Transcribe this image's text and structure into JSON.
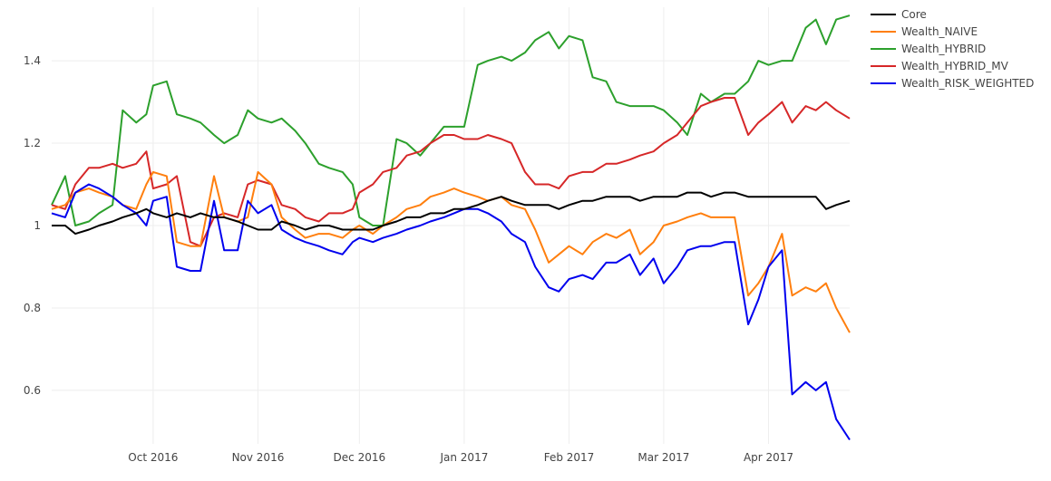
{
  "chart_data": {
    "type": "line",
    "title": "",
    "xlabel": "",
    "ylabel": "",
    "x_ticks": [
      "Oct 2016",
      "Nov 2016",
      "Dec 2016",
      "Jan 2017",
      "Feb 2017",
      "Mar 2017",
      "Apr 2017"
    ],
    "y_ticks": [
      "0.6",
      "0.8",
      "1",
      "1.2",
      "1.4"
    ],
    "xlim": [
      "2016-09-01",
      "2017-04-25"
    ],
    "ylim": [
      0.47,
      1.53
    ],
    "grid": true,
    "legend_position": "top-right",
    "series": [
      {
        "name": "Core",
        "color": "#000000",
        "x": [
          "2016-09-01",
          "2016-09-05",
          "2016-09-08",
          "2016-09-12",
          "2016-09-15",
          "2016-09-19",
          "2016-09-22",
          "2016-09-26",
          "2016-09-29",
          "2016-10-01",
          "2016-10-05",
          "2016-10-08",
          "2016-10-12",
          "2016-10-15",
          "2016-10-19",
          "2016-10-22",
          "2016-10-26",
          "2016-10-29",
          "2016-11-01",
          "2016-11-05",
          "2016-11-08",
          "2016-11-12",
          "2016-11-15",
          "2016-11-19",
          "2016-11-22",
          "2016-11-26",
          "2016-11-29",
          "2016-12-01",
          "2016-12-05",
          "2016-12-08",
          "2016-12-12",
          "2016-12-15",
          "2016-12-19",
          "2016-12-22",
          "2016-12-26",
          "2016-12-29",
          "2017-01-01",
          "2017-01-05",
          "2017-01-08",
          "2017-01-12",
          "2017-01-15",
          "2017-01-19",
          "2017-01-22",
          "2017-01-26",
          "2017-01-29",
          "2017-02-01",
          "2017-02-05",
          "2017-02-08",
          "2017-02-12",
          "2017-02-15",
          "2017-02-19",
          "2017-02-22",
          "2017-02-26",
          "2017-03-01",
          "2017-03-05",
          "2017-03-08",
          "2017-03-12",
          "2017-03-15",
          "2017-03-19",
          "2017-03-22",
          "2017-03-26",
          "2017-03-29",
          "2017-04-01",
          "2017-04-05",
          "2017-04-08",
          "2017-04-12",
          "2017-04-15",
          "2017-04-18",
          "2017-04-21",
          "2017-04-25"
        ],
        "values": [
          1.0,
          1.0,
          0.98,
          0.99,
          1.0,
          1.01,
          1.02,
          1.03,
          1.04,
          1.03,
          1.02,
          1.03,
          1.02,
          1.03,
          1.02,
          1.02,
          1.01,
          1.0,
          0.99,
          0.99,
          1.01,
          1.0,
          0.99,
          1.0,
          1.0,
          0.99,
          0.99,
          0.99,
          0.99,
          1.0,
          1.01,
          1.02,
          1.02,
          1.03,
          1.03,
          1.04,
          1.04,
          1.05,
          1.06,
          1.07,
          1.06,
          1.05,
          1.05,
          1.05,
          1.04,
          1.05,
          1.06,
          1.06,
          1.07,
          1.07,
          1.07,
          1.06,
          1.07,
          1.07,
          1.07,
          1.08,
          1.08,
          1.07,
          1.08,
          1.08,
          1.07,
          1.07,
          1.07,
          1.07,
          1.07,
          1.07,
          1.07,
          1.04,
          1.05,
          1.06
        ]
      },
      {
        "name": "Wealth_NAIVE",
        "color": "#ff7f0e",
        "x": [
          "2016-09-01",
          "2016-09-05",
          "2016-09-08",
          "2016-09-12",
          "2016-09-15",
          "2016-09-19",
          "2016-09-22",
          "2016-09-26",
          "2016-09-29",
          "2016-10-01",
          "2016-10-05",
          "2016-10-08",
          "2016-10-12",
          "2016-10-15",
          "2016-10-19",
          "2016-10-22",
          "2016-10-26",
          "2016-10-29",
          "2016-11-01",
          "2016-11-05",
          "2016-11-08",
          "2016-11-12",
          "2016-11-15",
          "2016-11-19",
          "2016-11-22",
          "2016-11-26",
          "2016-11-29",
          "2016-12-01",
          "2016-12-05",
          "2016-12-08",
          "2016-12-12",
          "2016-12-15",
          "2016-12-19",
          "2016-12-22",
          "2016-12-26",
          "2016-12-29",
          "2017-01-01",
          "2017-01-05",
          "2017-01-08",
          "2017-01-12",
          "2017-01-15",
          "2017-01-19",
          "2017-01-22",
          "2017-01-26",
          "2017-01-29",
          "2017-02-01",
          "2017-02-05",
          "2017-02-08",
          "2017-02-12",
          "2017-02-15",
          "2017-02-19",
          "2017-02-22",
          "2017-02-26",
          "2017-03-01",
          "2017-03-05",
          "2017-03-08",
          "2017-03-12",
          "2017-03-15",
          "2017-03-19",
          "2017-03-22",
          "2017-03-26",
          "2017-03-29",
          "2017-04-01",
          "2017-04-05",
          "2017-04-08",
          "2017-04-12",
          "2017-04-15",
          "2017-04-18",
          "2017-04-21",
          "2017-04-25"
        ],
        "values": [
          1.04,
          1.05,
          1.08,
          1.09,
          1.08,
          1.07,
          1.05,
          1.04,
          1.1,
          1.13,
          1.12,
          0.96,
          0.95,
          0.95,
          1.12,
          1.02,
          1.01,
          1.02,
          1.13,
          1.1,
          1.02,
          0.99,
          0.97,
          0.98,
          0.98,
          0.97,
          0.99,
          1.0,
          0.98,
          1.0,
          1.02,
          1.04,
          1.05,
          1.07,
          1.08,
          1.09,
          1.08,
          1.07,
          1.06,
          1.07,
          1.05,
          1.04,
          0.99,
          0.91,
          0.93,
          0.95,
          0.93,
          0.96,
          0.98,
          0.97,
          0.99,
          0.93,
          0.96,
          1.0,
          1.01,
          1.02,
          1.03,
          1.02,
          1.02,
          1.02,
          0.83,
          0.86,
          0.9,
          0.98,
          0.83,
          0.85,
          0.84,
          0.86,
          0.8,
          0.74
        ]
      },
      {
        "name": "Wealth_HYBRID",
        "color": "#2ca02c",
        "x": [
          "2016-09-01",
          "2016-09-05",
          "2016-09-08",
          "2016-09-12",
          "2016-09-15",
          "2016-09-19",
          "2016-09-22",
          "2016-09-26",
          "2016-09-29",
          "2016-10-01",
          "2016-10-05",
          "2016-10-08",
          "2016-10-12",
          "2016-10-15",
          "2016-10-19",
          "2016-10-22",
          "2016-10-26",
          "2016-10-29",
          "2016-11-01",
          "2016-11-05",
          "2016-11-08",
          "2016-11-12",
          "2016-11-15",
          "2016-11-19",
          "2016-11-22",
          "2016-11-26",
          "2016-11-29",
          "2016-12-01",
          "2016-12-05",
          "2016-12-08",
          "2016-12-12",
          "2016-12-15",
          "2016-12-19",
          "2016-12-22",
          "2016-12-26",
          "2016-12-29",
          "2017-01-01",
          "2017-01-05",
          "2017-01-08",
          "2017-01-12",
          "2017-01-15",
          "2017-01-19",
          "2017-01-22",
          "2017-01-26",
          "2017-01-29",
          "2017-02-01",
          "2017-02-05",
          "2017-02-08",
          "2017-02-12",
          "2017-02-15",
          "2017-02-19",
          "2017-02-22",
          "2017-02-26",
          "2017-03-01",
          "2017-03-05",
          "2017-03-08",
          "2017-03-12",
          "2017-03-15",
          "2017-03-19",
          "2017-03-22",
          "2017-03-26",
          "2017-03-29",
          "2017-04-01",
          "2017-04-05",
          "2017-04-08",
          "2017-04-12",
          "2017-04-15",
          "2017-04-18",
          "2017-04-21",
          "2017-04-25"
        ],
        "values": [
          1.05,
          1.12,
          1.0,
          1.01,
          1.03,
          1.05,
          1.28,
          1.25,
          1.27,
          1.34,
          1.35,
          1.27,
          1.26,
          1.25,
          1.22,
          1.2,
          1.22,
          1.28,
          1.26,
          1.25,
          1.26,
          1.23,
          1.2,
          1.15,
          1.14,
          1.13,
          1.1,
          1.02,
          1.0,
          1.0,
          1.21,
          1.2,
          1.17,
          1.2,
          1.24,
          1.24,
          1.24,
          1.39,
          1.4,
          1.41,
          1.4,
          1.42,
          1.45,
          1.47,
          1.43,
          1.46,
          1.45,
          1.36,
          1.35,
          1.3,
          1.29,
          1.29,
          1.29,
          1.28,
          1.25,
          1.22,
          1.32,
          1.3,
          1.32,
          1.32,
          1.35,
          1.4,
          1.39,
          1.4,
          1.4,
          1.48,
          1.5,
          1.44,
          1.5,
          1.51
        ]
      },
      {
        "name": "Wealth_HYBRID_MV",
        "color": "#d62728",
        "x": [
          "2016-09-01",
          "2016-09-05",
          "2016-09-08",
          "2016-09-12",
          "2016-09-15",
          "2016-09-19",
          "2016-09-22",
          "2016-09-26",
          "2016-09-29",
          "2016-10-01",
          "2016-10-05",
          "2016-10-08",
          "2016-10-12",
          "2016-10-15",
          "2016-10-19",
          "2016-10-22",
          "2016-10-26",
          "2016-10-29",
          "2016-11-01",
          "2016-11-05",
          "2016-11-08",
          "2016-11-12",
          "2016-11-15",
          "2016-11-19",
          "2016-11-22",
          "2016-11-26",
          "2016-11-29",
          "2016-12-01",
          "2016-12-05",
          "2016-12-08",
          "2016-12-12",
          "2016-12-15",
          "2016-12-19",
          "2016-12-22",
          "2016-12-26",
          "2016-12-29",
          "2017-01-01",
          "2017-01-05",
          "2017-01-08",
          "2017-01-12",
          "2017-01-15",
          "2017-01-19",
          "2017-01-22",
          "2017-01-26",
          "2017-01-29",
          "2017-02-01",
          "2017-02-05",
          "2017-02-08",
          "2017-02-12",
          "2017-02-15",
          "2017-02-19",
          "2017-02-22",
          "2017-02-26",
          "2017-03-01",
          "2017-03-05",
          "2017-03-08",
          "2017-03-12",
          "2017-03-15",
          "2017-03-19",
          "2017-03-22",
          "2017-03-26",
          "2017-03-29",
          "2017-04-01",
          "2017-04-05",
          "2017-04-08",
          "2017-04-12",
          "2017-04-15",
          "2017-04-18",
          "2017-04-21",
          "2017-04-25"
        ],
        "values": [
          1.05,
          1.04,
          1.1,
          1.14,
          1.14,
          1.15,
          1.14,
          1.15,
          1.18,
          1.09,
          1.1,
          1.12,
          0.96,
          0.95,
          1.02,
          1.03,
          1.02,
          1.1,
          1.11,
          1.1,
          1.05,
          1.04,
          1.02,
          1.01,
          1.03,
          1.03,
          1.04,
          1.08,
          1.1,
          1.13,
          1.14,
          1.17,
          1.18,
          1.2,
          1.22,
          1.22,
          1.21,
          1.21,
          1.22,
          1.21,
          1.2,
          1.13,
          1.1,
          1.1,
          1.09,
          1.12,
          1.13,
          1.13,
          1.15,
          1.15,
          1.16,
          1.17,
          1.18,
          1.2,
          1.22,
          1.25,
          1.29,
          1.3,
          1.31,
          1.31,
          1.22,
          1.25,
          1.27,
          1.3,
          1.25,
          1.29,
          1.28,
          1.3,
          1.28,
          1.26
        ]
      },
      {
        "name": "Wealth_RISK_WEIGHTED",
        "color": "#0000ee",
        "x": [
          "2016-09-01",
          "2016-09-05",
          "2016-09-08",
          "2016-09-12",
          "2016-09-15",
          "2016-09-19",
          "2016-09-22",
          "2016-09-26",
          "2016-09-29",
          "2016-10-01",
          "2016-10-05",
          "2016-10-08",
          "2016-10-12",
          "2016-10-15",
          "2016-10-19",
          "2016-10-22",
          "2016-10-26",
          "2016-10-29",
          "2016-11-01",
          "2016-11-05",
          "2016-11-08",
          "2016-11-12",
          "2016-11-15",
          "2016-11-19",
          "2016-11-22",
          "2016-11-26",
          "2016-11-29",
          "2016-12-01",
          "2016-12-05",
          "2016-12-08",
          "2016-12-12",
          "2016-12-15",
          "2016-12-19",
          "2016-12-22",
          "2016-12-26",
          "2016-12-29",
          "2017-01-01",
          "2017-01-05",
          "2017-01-08",
          "2017-01-12",
          "2017-01-15",
          "2017-01-19",
          "2017-01-22",
          "2017-01-26",
          "2017-01-29",
          "2017-02-01",
          "2017-02-05",
          "2017-02-08",
          "2017-02-12",
          "2017-02-15",
          "2017-02-19",
          "2017-02-22",
          "2017-02-26",
          "2017-03-01",
          "2017-03-05",
          "2017-03-08",
          "2017-03-12",
          "2017-03-15",
          "2017-03-19",
          "2017-03-22",
          "2017-03-26",
          "2017-03-29",
          "2017-04-01",
          "2017-04-05",
          "2017-04-08",
          "2017-04-12",
          "2017-04-15",
          "2017-04-18",
          "2017-04-21",
          "2017-04-25"
        ],
        "values": [
          1.03,
          1.02,
          1.08,
          1.1,
          1.09,
          1.07,
          1.05,
          1.03,
          1.0,
          1.06,
          1.07,
          0.9,
          0.89,
          0.89,
          1.06,
          0.94,
          0.94,
          1.06,
          1.03,
          1.05,
          0.99,
          0.97,
          0.96,
          0.95,
          0.94,
          0.93,
          0.96,
          0.97,
          0.96,
          0.97,
          0.98,
          0.99,
          1.0,
          1.01,
          1.02,
          1.03,
          1.04,
          1.04,
          1.03,
          1.01,
          0.98,
          0.96,
          0.9,
          0.85,
          0.84,
          0.87,
          0.88,
          0.87,
          0.91,
          0.91,
          0.93,
          0.88,
          0.92,
          0.86,
          0.9,
          0.94,
          0.95,
          0.95,
          0.96,
          0.96,
          0.76,
          0.82,
          0.9,
          0.94,
          0.59,
          0.62,
          0.6,
          0.62,
          0.53,
          0.48
        ]
      }
    ]
  }
}
